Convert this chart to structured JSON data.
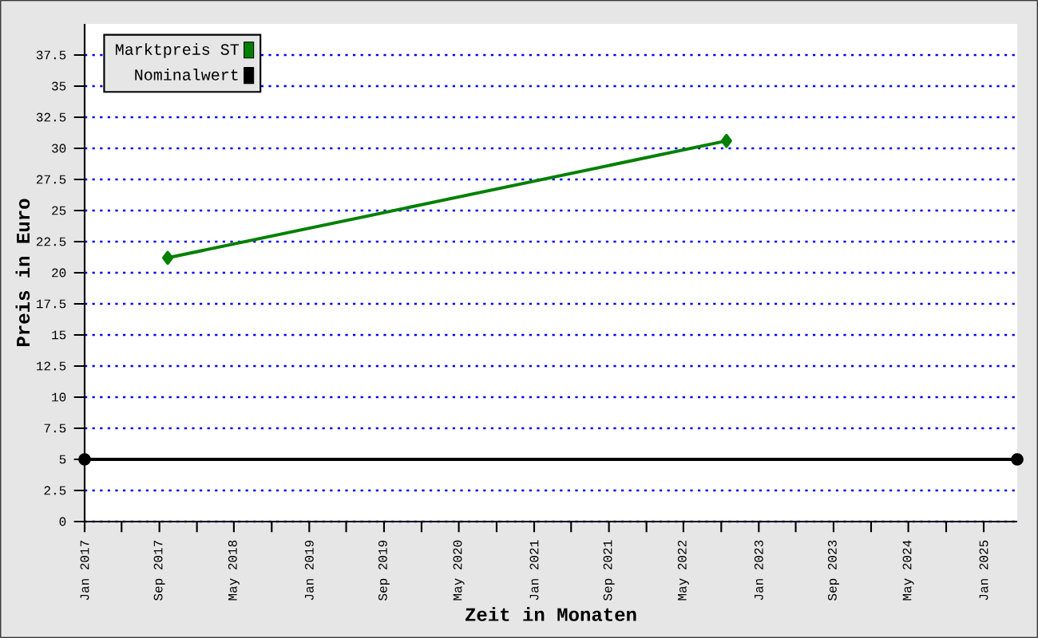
{
  "chart_data": {
    "type": "line",
    "xlabel": "Zeit in Monaten",
    "ylabel": "Preis in Euro",
    "xlim": [
      "2017-01-01",
      "2025-04-20"
    ],
    "ylim": [
      0,
      40
    ],
    "xticks": [
      {
        "value": "2017-01",
        "label": "Jan 2017"
      },
      {
        "value": "2017-05",
        "label": null
      },
      {
        "value": "2017-09",
        "label": "Sep 2017"
      },
      {
        "value": "2018-01",
        "label": null
      },
      {
        "value": "2018-05",
        "label": "May 2018"
      },
      {
        "value": "2018-09",
        "label": null
      },
      {
        "value": "2019-01",
        "label": "Jan 2019"
      },
      {
        "value": "2019-05",
        "label": null
      },
      {
        "value": "2019-09",
        "label": "Sep 2019"
      },
      {
        "value": "2020-01",
        "label": null
      },
      {
        "value": "2020-05",
        "label": "May 2020"
      },
      {
        "value": "2020-09",
        "label": null
      },
      {
        "value": "2021-01",
        "label": "Jan 2021"
      },
      {
        "value": "2021-05",
        "label": null
      },
      {
        "value": "2021-09",
        "label": "Sep 2021"
      },
      {
        "value": "2022-01",
        "label": null
      },
      {
        "value": "2022-05",
        "label": "May 2022"
      },
      {
        "value": "2022-09",
        "label": null
      },
      {
        "value": "2023-01",
        "label": "Jan 2023"
      },
      {
        "value": "2023-05",
        "label": null
      },
      {
        "value": "2023-09",
        "label": "Sep 2023"
      },
      {
        "value": "2024-01",
        "label": null
      },
      {
        "value": "2024-05",
        "label": "May 2024"
      },
      {
        "value": "2024-09",
        "label": null
      },
      {
        "value": "2025-01",
        "label": "Jan 2025"
      }
    ],
    "yticks": [
      0,
      2.5,
      5,
      7.5,
      10,
      12.5,
      15,
      17.5,
      20,
      22.5,
      25,
      27.5,
      30,
      32.5,
      35,
      37.5
    ],
    "grid": "y",
    "legend": "top left",
    "series": [
      {
        "name": "Marktpreis ST",
        "color": "#008000",
        "marker": "diamond",
        "x": [
          "2017-09-28",
          "2022-09-18"
        ],
        "values": [
          21.2,
          30.6
        ]
      },
      {
        "name": "Nominalwert",
        "color": "#000000",
        "marker": "circle",
        "x": [
          "2017-01-01",
          "2025-04-20"
        ],
        "values": [
          5,
          5
        ]
      }
    ]
  }
}
